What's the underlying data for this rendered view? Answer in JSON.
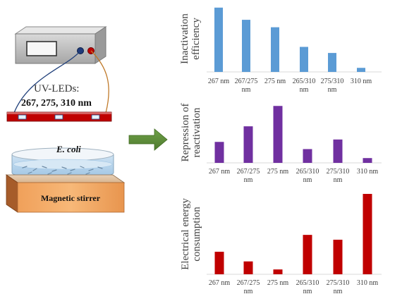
{
  "apparatus": {
    "led_label_line1": "UV-LEDs:",
    "led_label_line2": "267, 275, 310 nm",
    "sample_label": "E. coli",
    "stirrer_label": "Magnetic stirrer"
  },
  "chart_data": [
    {
      "type": "bar",
      "ylabel_lines": [
        "Inactivation",
        "efficiency"
      ],
      "categories": [
        [
          "267 nm"
        ],
        [
          "267/275",
          "nm"
        ],
        [
          "275 nm"
        ],
        [
          "265/310",
          "nm"
        ],
        [
          "275/310",
          "nm"
        ],
        [
          "310 nm"
        ]
      ],
      "values": [
        0.95,
        0.77,
        0.66,
        0.37,
        0.28,
        0.06
      ],
      "ylim": [
        0,
        1
      ],
      "color": "#5B9BD5",
      "y_ticks_shown": false
    },
    {
      "type": "bar",
      "ylabel_lines": [
        "Repression of",
        "reactivation"
      ],
      "categories": [
        [
          "267 nm"
        ],
        [
          "267/275",
          "nm"
        ],
        [
          "275 nm"
        ],
        [
          "265/310",
          "nm"
        ],
        [
          "275/310",
          "nm"
        ],
        [
          "310 nm"
        ]
      ],
      "values": [
        0.35,
        0.61,
        0.95,
        0.23,
        0.39,
        0.08
      ],
      "ylim": [
        0,
        1
      ],
      "color": "#7030A0",
      "y_ticks_shown": false
    },
    {
      "type": "bar",
      "ylabel_lines": [
        "Electrical energy",
        "consumption"
      ],
      "categories": [
        [
          "267 nm"
        ],
        [
          "267/275",
          "nm"
        ],
        [
          "275 nm"
        ],
        [
          "265/310",
          "nm"
        ],
        [
          "275/310",
          "nm"
        ],
        [
          "310 nm"
        ]
      ],
      "values": [
        0.28,
        0.16,
        0.06,
        0.49,
        0.43,
        1.0
      ],
      "ylim": [
        0,
        1
      ],
      "color": "#C00000",
      "y_ticks_shown": false
    }
  ]
}
